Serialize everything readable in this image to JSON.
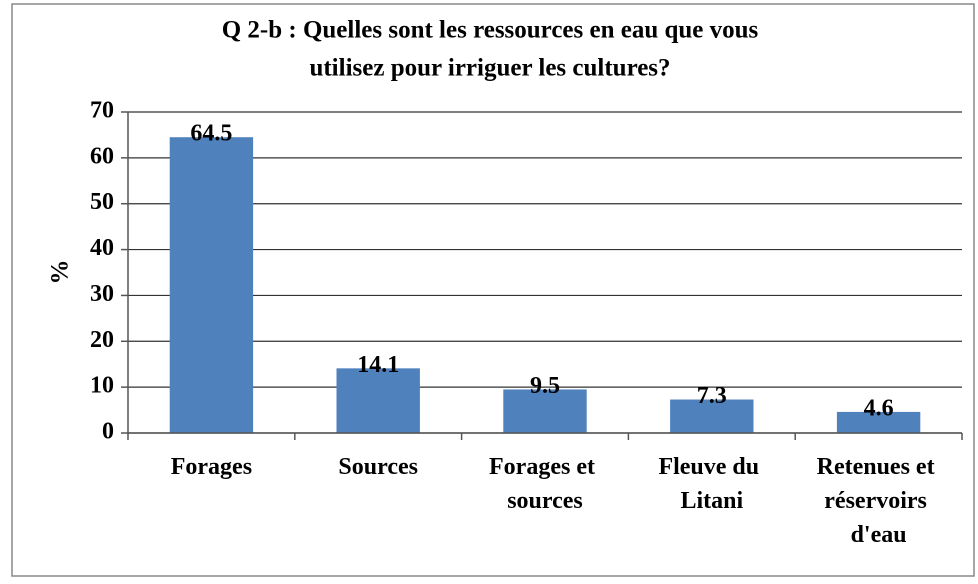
{
  "chart_data": {
    "type": "bar",
    "title": [
      "Q 2-b : Quelles sont les ressources en eau que vous",
      "utilisez pour irriguer les cultures?"
    ],
    "y_label": "%",
    "categories": [
      "Forages",
      "Sources",
      "Forages et sources",
      "Fleuve du Litani",
      "Retenues et réservoirs d'eau"
    ],
    "values": [
      64.5,
      14.1,
      9.5,
      7.3,
      4.6
    ],
    "color": "#4f81bd",
    "ylim": [
      0,
      70
    ],
    "yticks": [
      0,
      10,
      20,
      30,
      40,
      50,
      60,
      70
    ],
    "grid": true
  }
}
